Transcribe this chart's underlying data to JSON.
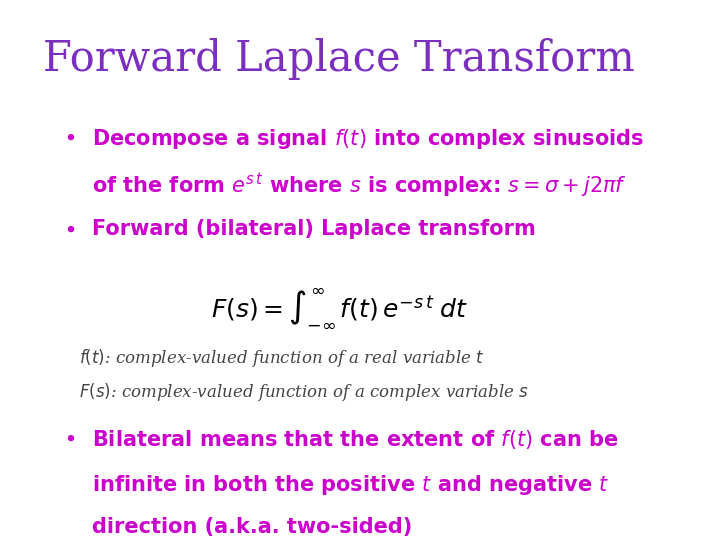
{
  "title": "Forward Laplace Transform",
  "title_color": "#7B2FBE",
  "title_fontsize": 32,
  "background_color": "#FFFFFF",
  "bullet_color": "#CC00CC",
  "annotation_color": "#444444",
  "figsize": [
    7.2,
    5.4
  ],
  "dpi": 100
}
